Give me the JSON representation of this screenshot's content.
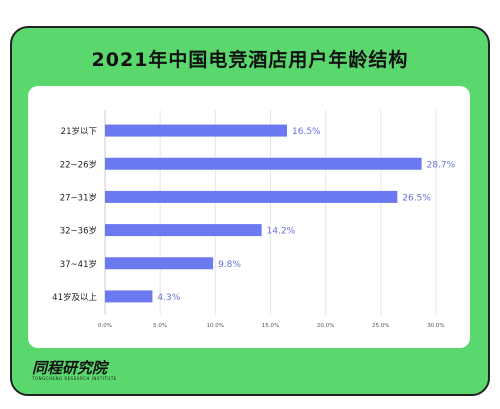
{
  "title": "2021年中国电竞酒店用户年龄结构",
  "brand": {
    "name": "同程研究院",
    "sub": "TONGCHENG RESEARCH INSTITUTE"
  },
  "colors": {
    "card": "#5ad86e",
    "bar": "#6b79f0",
    "label": "#6a72d8"
  },
  "chart_data": {
    "type": "bar",
    "orientation": "horizontal",
    "categories": [
      "21岁以下",
      "22~26岁",
      "27~31岁",
      "32~36岁",
      "37~41岁",
      "41岁及以上"
    ],
    "values": [
      16.5,
      28.7,
      26.5,
      14.2,
      9.8,
      4.3
    ],
    "value_labels": [
      "16.5%",
      "28.7%",
      "26.5%",
      "14.2%",
      "9.8%",
      "4.3%"
    ],
    "x_ticks": [
      "0.0%",
      "5.0%",
      "10.0%",
      "15.0%",
      "20.0%",
      "25.0%",
      "30.0%"
    ],
    "xlim": [
      0,
      32
    ],
    "grid": true,
    "title": "2021年中国电竞酒店用户年龄结构",
    "xlabel": "",
    "ylabel": ""
  }
}
